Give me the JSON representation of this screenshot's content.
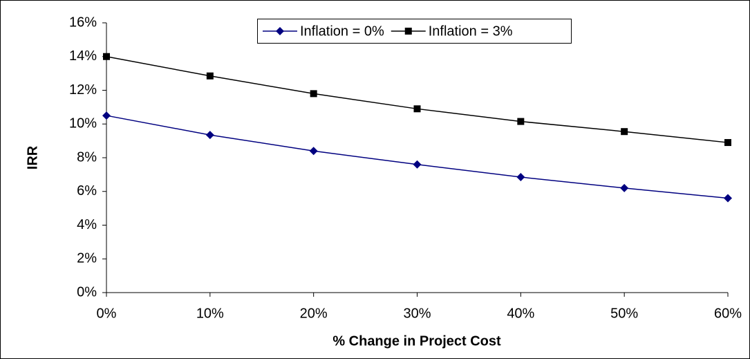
{
  "chart_data": {
    "type": "line",
    "x_label": "% Change in Project Cost",
    "y_label": "IRR",
    "x": [
      0,
      10,
      20,
      30,
      40,
      50,
      60
    ],
    "series": [
      {
        "name": "Inflation = 0%",
        "color": "#000080",
        "marker": "diamond",
        "values": [
          10.5,
          9.35,
          8.4,
          7.6,
          6.85,
          6.2,
          5.6
        ]
      },
      {
        "name": "Inflation = 3%",
        "color": "#000000",
        "marker": "square",
        "values": [
          14.0,
          12.85,
          11.8,
          10.9,
          10.15,
          9.55,
          8.9
        ]
      }
    ],
    "xlim": [
      0,
      60
    ],
    "xticks": [
      {
        "value": 0,
        "label": "0%"
      },
      {
        "value": 10,
        "label": "10%"
      },
      {
        "value": 20,
        "label": "20%"
      },
      {
        "value": 30,
        "label": "30%"
      },
      {
        "value": 40,
        "label": "40%"
      },
      {
        "value": 50,
        "label": "50%"
      },
      {
        "value": 60,
        "label": "60%"
      }
    ],
    "ylim": [
      0,
      16
    ],
    "yticks": [
      {
        "value": 0,
        "label": "0%"
      },
      {
        "value": 2,
        "label": "2%"
      },
      {
        "value": 4,
        "label": "4%"
      },
      {
        "value": 6,
        "label": "6%"
      },
      {
        "value": 8,
        "label": "8%"
      },
      {
        "value": 10,
        "label": "10%"
      },
      {
        "value": 12,
        "label": "12%"
      },
      {
        "value": 14,
        "label": "14%"
      },
      {
        "value": 16,
        "label": "16%"
      }
    ],
    "legend": "top"
  }
}
